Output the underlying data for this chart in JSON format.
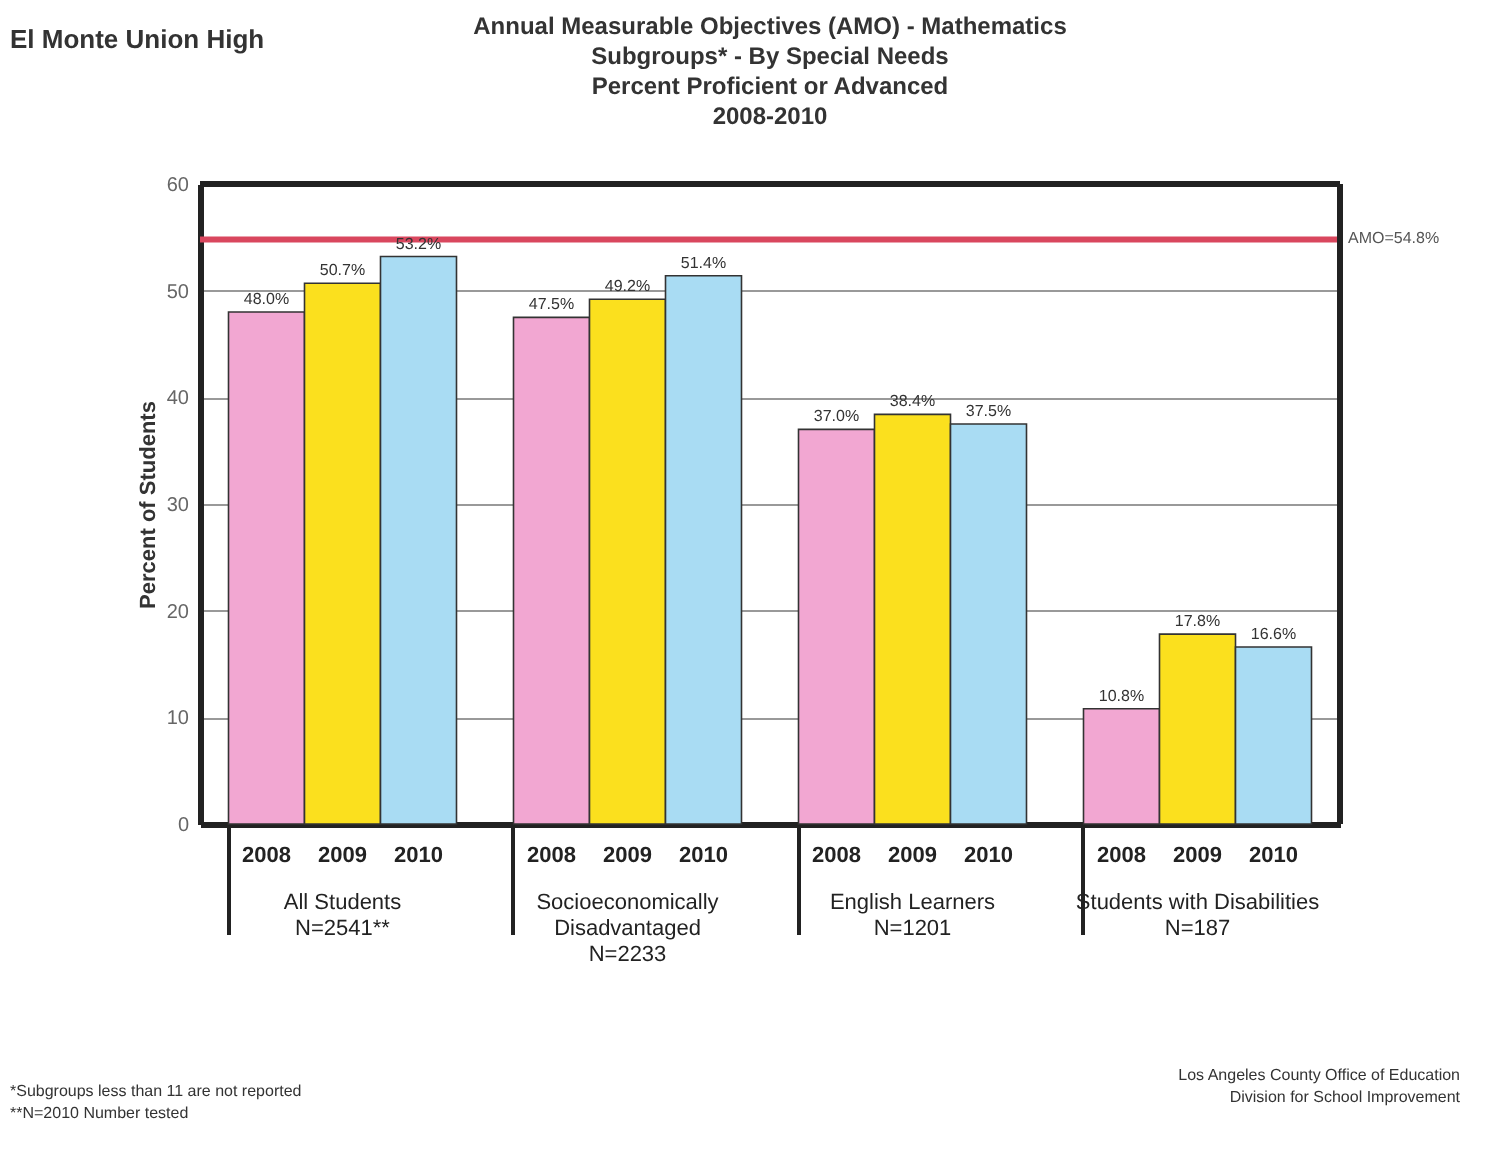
{
  "chart_data": {
    "type": "bar",
    "title": "Annual Measurable Objectives (AMO) - Mathematics\nSubgroups* - By Special Needs\nPercent Proficient or Advanced\n2008-2010",
    "ylabel": "Percent of Students",
    "categories": [
      "All Students\nN=2541**",
      "Socioeconomically\nDisadvantaged\nN=2233",
      "English Learners\nN=1201",
      "Students with Disabilities\nN=187"
    ],
    "series": [
      {
        "name": "2008",
        "color": "#f2a7d2",
        "values": [
          48.0,
          47.5,
          37.0,
          10.8
        ]
      },
      {
        "name": "2009",
        "color": "#fbe01e",
        "values": [
          50.7,
          49.2,
          38.4,
          17.8
        ]
      },
      {
        "name": "2010",
        "color": "#a9dcf3",
        "values": [
          53.2,
          51.4,
          37.5,
          16.6
        ]
      }
    ],
    "value_labels": [
      [
        "48.0%",
        "47.5%",
        "37.0%",
        "10.8%"
      ],
      [
        "50.7%",
        "49.2%",
        "38.4%",
        "17.8%"
      ],
      [
        "53.2%",
        "51.4%",
        "37.5%",
        "16.6%"
      ]
    ],
    "ylim": [
      0,
      60
    ],
    "yticks": [
      0,
      10,
      20,
      30,
      40,
      50,
      60
    ],
    "grid": "y",
    "ref_lines": [
      {
        "axis": "y",
        "value": 54.8,
        "label": "AMO=54.8%",
        "color": "#d9475e"
      }
    ],
    "annotations": [
      "El Monte Union High",
      "*Subgroups less than 11 are not reported\n**N=2010 Number tested",
      "Los Angeles County Office of Education\nDivision for School Improvement"
    ]
  }
}
